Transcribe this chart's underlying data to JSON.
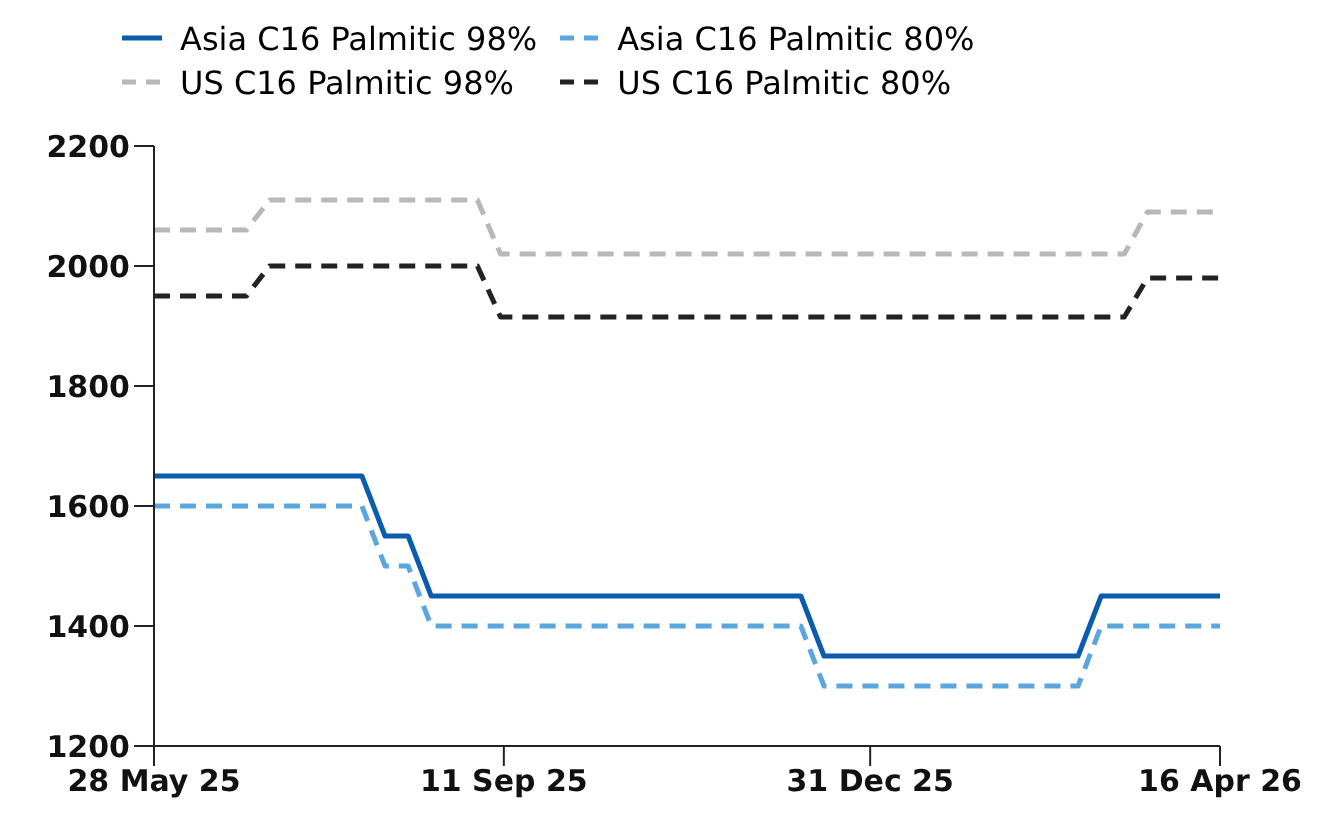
{
  "chart_data": {
    "type": "line",
    "xlim": [
      "2025-05-28",
      "2026-04-16"
    ],
    "xticks": [
      {
        "value": "2025-05-28",
        "label": "28 May 25"
      },
      {
        "value": "2025-09-11",
        "label": "11 Sep 25"
      },
      {
        "value": "2025-12-31",
        "label": "31 Dec 25"
      },
      {
        "value": "2026-04-16",
        "label": "16 Apr 26"
      }
    ],
    "ylim": [
      1200,
      2200
    ],
    "yticks": [
      1200,
      1400,
      1600,
      1800,
      2000,
      2200
    ],
    "grid": false,
    "legend": "top",
    "marker": "none",
    "series": [
      {
        "name": "Asia C16 Palmitic 98%",
        "color": "#0a5cad",
        "line_style": "solid",
        "x": [
          "2025-05-28",
          "2025-07-30",
          "2025-08-06",
          "2025-08-13",
          "2025-08-20",
          "2025-12-10",
          "2025-12-17",
          "2026-03-04",
          "2026-03-11",
          "2026-04-16"
        ],
        "values": [
          1650,
          1650,
          1550,
          1550,
          1450,
          1450,
          1350,
          1350,
          1450,
          1450
        ]
      },
      {
        "name": "Asia C16 Palmitic 80%",
        "color": "#5aa7e0",
        "line_style": "dashed",
        "x": [
          "2025-05-28",
          "2025-07-30",
          "2025-08-06",
          "2025-08-13",
          "2025-08-20",
          "2025-12-10",
          "2025-12-17",
          "2026-03-04",
          "2026-03-11",
          "2026-04-16"
        ],
        "values": [
          1600,
          1600,
          1500,
          1500,
          1400,
          1400,
          1300,
          1300,
          1400,
          1400
        ]
      },
      {
        "name": "US C16 Palmitic 98%",
        "color": "#b8b8b8",
        "line_style": "dashed",
        "x": [
          "2025-05-28",
          "2025-06-25",
          "2025-07-02",
          "2025-09-03",
          "2025-09-10",
          "2026-03-18",
          "2026-03-25",
          "2026-04-16"
        ],
        "values": [
          2060,
          2060,
          2110,
          2110,
          2020,
          2020,
          2090,
          2090
        ]
      },
      {
        "name": "US C16 Palmitic 80%",
        "color": "#222222",
        "line_style": "dashed",
        "x": [
          "2025-05-28",
          "2025-06-25",
          "2025-07-02",
          "2025-09-03",
          "2025-09-10",
          "2026-03-18",
          "2026-03-25",
          "2026-04-16"
        ],
        "values": [
          1950,
          1950,
          2000,
          2000,
          1915,
          1915,
          1980,
          1980
        ]
      }
    ]
  }
}
